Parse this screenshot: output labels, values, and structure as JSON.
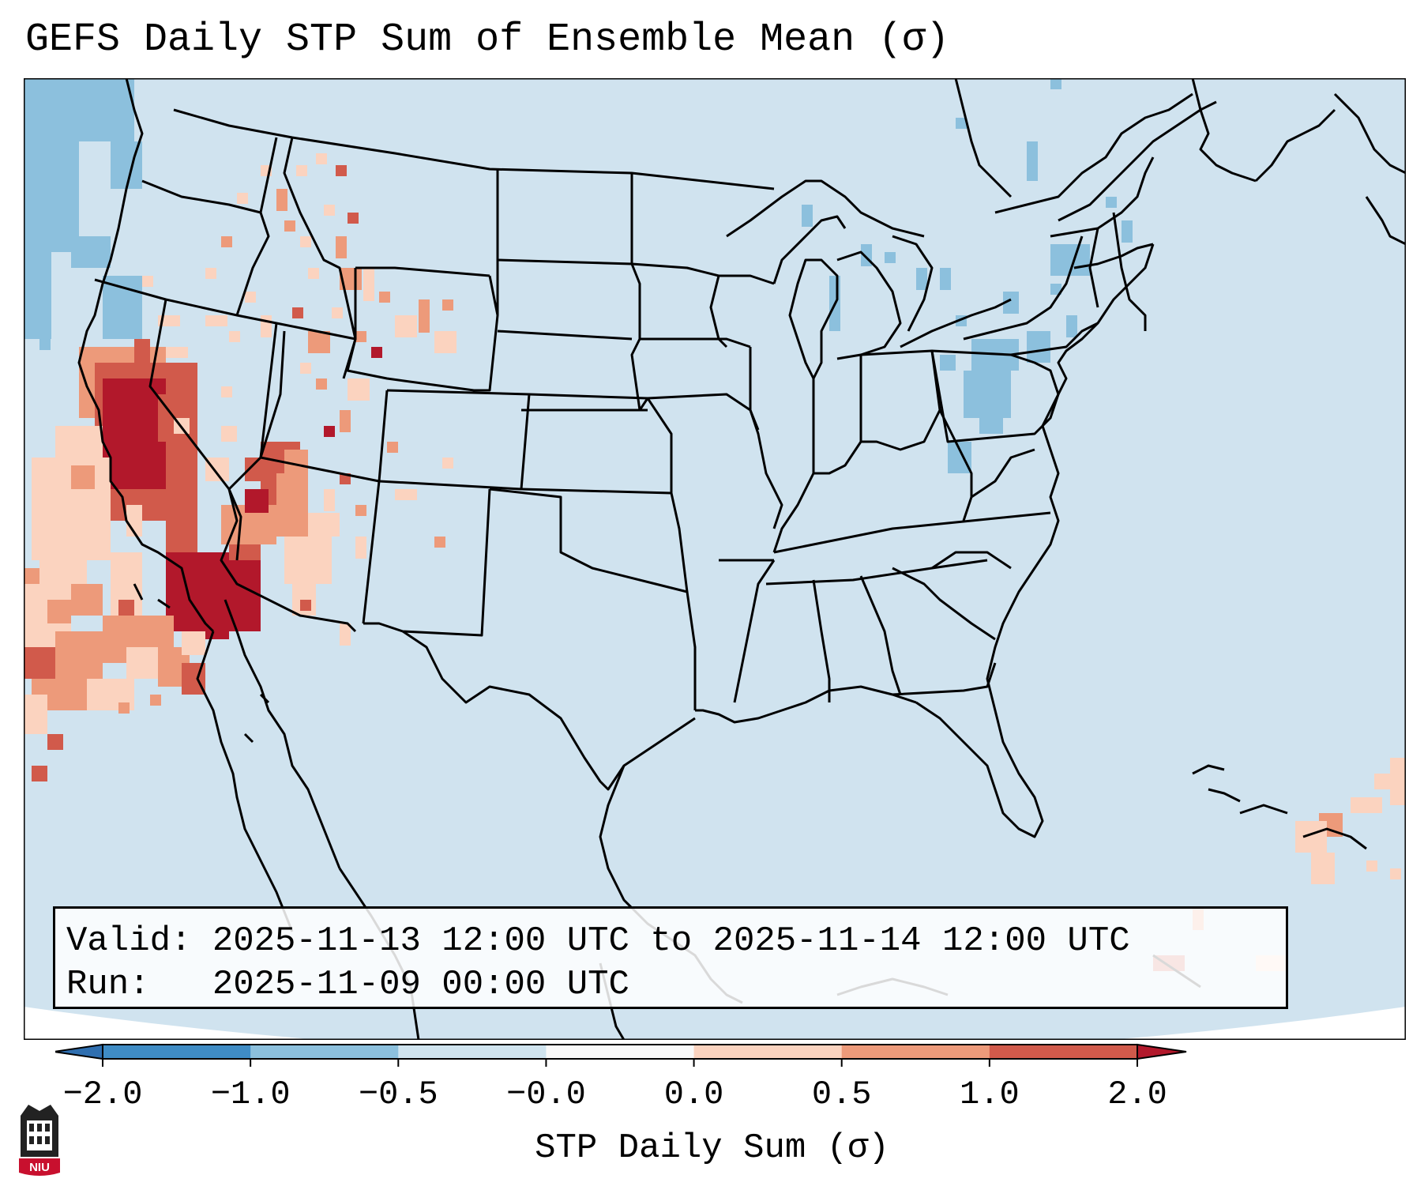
{
  "title": "GEFS Daily STP Sum of Ensemble Mean (σ)",
  "info": {
    "valid_label": "Valid:",
    "valid_value": "2025-11-13 12:00 UTC to 2025-11-14 12:00 UTC",
    "run_label": "Run:",
    "run_value": "2025-11-09 00:00 UTC"
  },
  "colorbar": {
    "label": "STP Daily Sum (σ)",
    "ticks": [
      "−2.0",
      "−1.0",
      "−0.5",
      "−0.0",
      "0.0",
      "0.5",
      "1.0",
      "2.0"
    ],
    "colors": [
      "#3f8cc5",
      "#8cc0dd",
      "#d0e4ef",
      "#f9f9f9",
      "#fbd3bf",
      "#ed9a7a",
      "#d15a4b"
    ],
    "extend_low": "#2f6fb0",
    "extend_high": "#b2182b"
  },
  "map": {
    "background": "#d0e3ef",
    "outside": "#ffffff"
  },
  "logo": {
    "text": "NIU"
  }
}
